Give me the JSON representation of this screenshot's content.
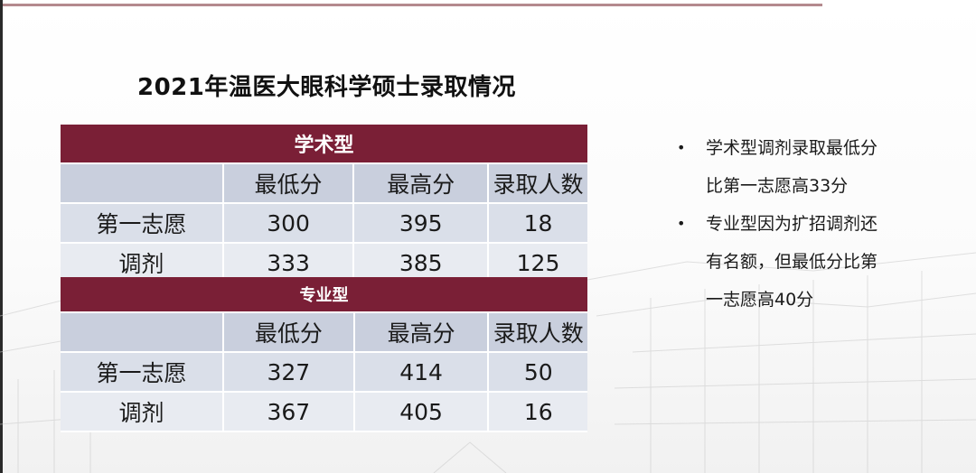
{
  "title": "2021年温医大眼科学硕士录取情况",
  "columns": [
    "",
    "最低分",
    "最高分",
    "录取人数"
  ],
  "academic": {
    "group_label": "学术型",
    "rows": [
      {
        "label": "第一志愿",
        "min": "300",
        "max": "395",
        "count": "18"
      },
      {
        "label": "调剂",
        "min": "333",
        "max": "385",
        "count": "125"
      }
    ]
  },
  "professional": {
    "group_label": "专业型",
    "rows": [
      {
        "label": "第一志愿",
        "min": "327",
        "max": "414",
        "count": "50"
      },
      {
        "label": "调剂",
        "min": "367",
        "max": "405",
        "count": "16"
      }
    ]
  },
  "notes": [
    "学术型调剂录取最低分比第一志愿高33分",
    "专业型因为扩招调剂还有名额，但最低分比第一志愿高40分"
  ]
}
